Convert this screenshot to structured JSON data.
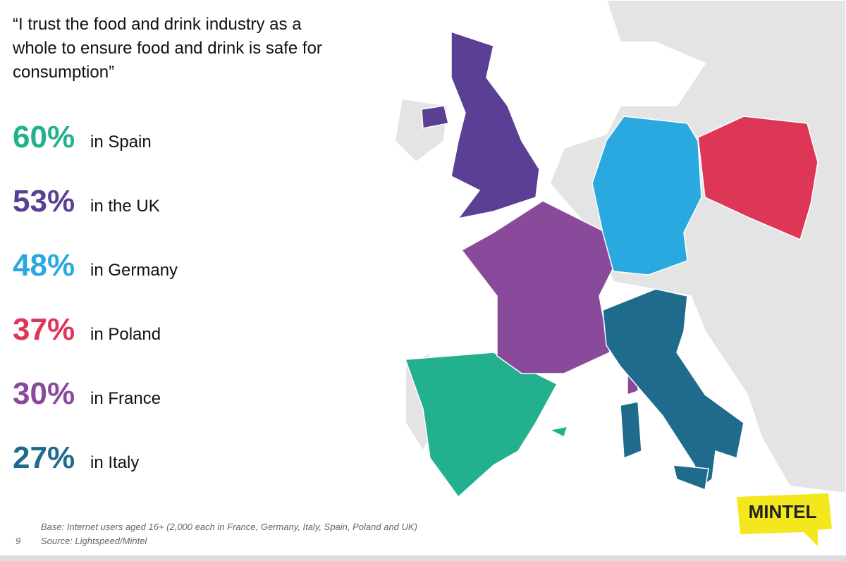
{
  "header": {
    "title": "“I trust the food and drink industry as a whole to ensure food and drink is safe for consumption”"
  },
  "stats": [
    {
      "value": "60%",
      "label": "in Spain",
      "color": "#22b08f"
    },
    {
      "value": "53%",
      "label": "in the UK",
      "color": "#5b3f95"
    },
    {
      "value": "48%",
      "label": "in Germany",
      "color": "#29a9e0"
    },
    {
      "value": "37%",
      "label": "in Poland",
      "color": "#de3657"
    },
    {
      "value": "30%",
      "label": "in France",
      "color": "#8a4a9c"
    },
    {
      "value": "27%",
      "label": "in Italy",
      "color": "#1e6b8c"
    }
  ],
  "footer": {
    "base": "Base: Internet users aged 16+ (2,000 each in France, Germany, Italy, Spain, Poland and UK)",
    "source": "Source: Lightspeed/Mintel",
    "page": "9"
  },
  "logo": {
    "text": "MINTEL"
  }
}
